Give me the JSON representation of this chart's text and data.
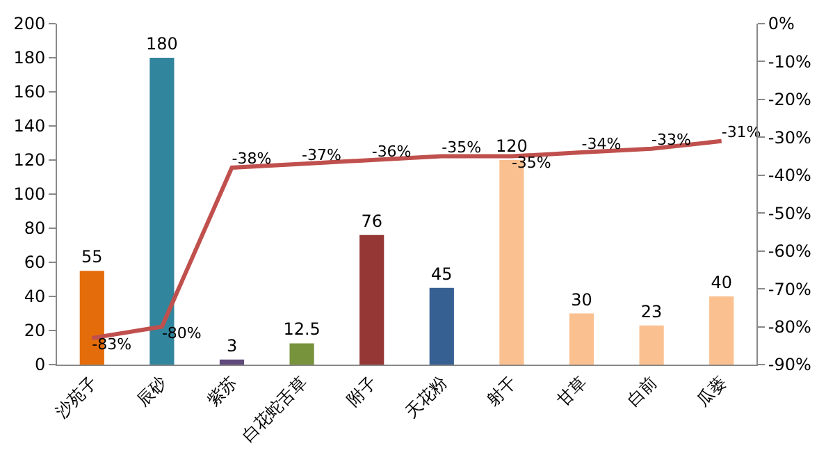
{
  "chart_data": {
    "type": "bar",
    "categories": [
      "沙苑子",
      "辰砂",
      "紫苏",
      "白花蛇舌草",
      "附子",
      "天花粉",
      "射干",
      "甘草",
      "白前",
      "瓜蒌"
    ],
    "series": [
      {
        "colors": [
          "#e46c0a",
          "#31859c",
          "#604a7b",
          "#77933c",
          "#953735",
          "#376092",
          "#fac090",
          "#fac090",
          "#fac090",
          "#fac090"
        ],
        "values": [
          55,
          180,
          3,
          12.5,
          76,
          45,
          120,
          30,
          23,
          40
        ],
        "data_labels": true
      },
      {
        "type": "line",
        "axis": "y2",
        "color": "#c0504d",
        "values": [
          -83,
          -80,
          -38,
          -37,
          -36,
          -35,
          -35,
          -34,
          -33,
          -31
        ],
        "value_labels": [
          "-83%",
          "-80%",
          "-38%",
          "-37%",
          "-36%",
          "-35%",
          "-35%",
          "-34%",
          "-33%",
          "-31%"
        ]
      }
    ],
    "ylim": [
      0,
      200
    ],
    "yticks": [
      0,
      20,
      40,
      60,
      80,
      100,
      120,
      140,
      160,
      180,
      200
    ],
    "y2lim": [
      -90,
      0
    ],
    "y2ticks": [
      {
        "value": 0,
        "label": "0%"
      },
      {
        "value": -10,
        "label": "-10%"
      },
      {
        "value": -20,
        "label": "-20%"
      },
      {
        "value": -30,
        "label": "-30%"
      },
      {
        "value": -40,
        "label": "-40%"
      },
      {
        "value": -50,
        "label": "-50%"
      },
      {
        "value": -60,
        "label": "-60%"
      },
      {
        "value": -70,
        "label": "-70%"
      },
      {
        "value": -80,
        "label": "-80%"
      },
      {
        "value": -90,
        "label": "-90%"
      }
    ],
    "marker": "none",
    "line_style": "solid"
  }
}
